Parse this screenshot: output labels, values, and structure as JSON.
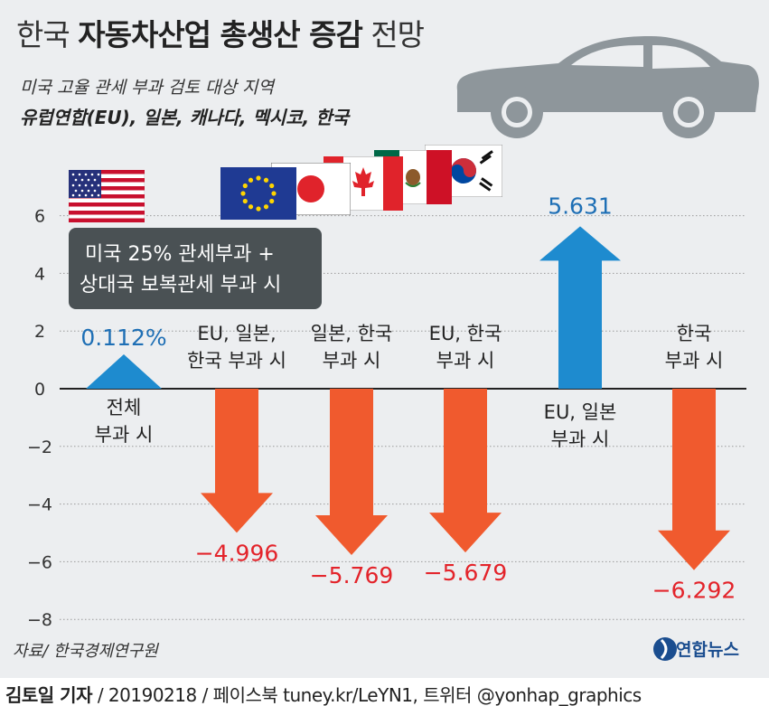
{
  "header": {
    "title_light_1": "한국",
    "title_bold": "자동차산업 총생산 증감",
    "title_light_2": "전망",
    "subtitle": "미국 고율 관세 부과 검토 대상 지역",
    "subtitle_regions": "유럽연합(EU), 일본, 캐나다, 멕시코, 한국"
  },
  "callout": {
    "line1": "미국 25% 관세부과 +",
    "line2": "상대국 보복관세 부과 시"
  },
  "chart_data": {
    "type": "bar",
    "title": "한국 자동차산업 총생산 증감 전망",
    "ylim": [
      -8,
      7
    ],
    "yticks": [
      6,
      4,
      2,
      0,
      -2,
      -4,
      -6,
      -8
    ],
    "ytick_labels": [
      "6",
      "4",
      "2",
      "0",
      "−2",
      "−4",
      "−6",
      "−8"
    ],
    "categories": [
      [
        "전체",
        "부과 시"
      ],
      [
        "EU, 일본,",
        "한국 부과 시"
      ],
      [
        "일본, 한국",
        "부과 시"
      ],
      [
        "EU, 한국",
        "부과 시"
      ],
      [
        "EU, 일본",
        "부과 시"
      ],
      [
        "한국",
        "부과 시"
      ]
    ],
    "values": [
      0.112,
      -4.996,
      -5.769,
      -5.679,
      5.631,
      -6.292
    ],
    "value_labels": [
      "0.112%",
      "−4.996",
      "−5.769",
      "−5.679",
      "5.631",
      "−6.292"
    ],
    "colors": {
      "positive": "#1e8bcf",
      "negative": "#f05a2e",
      "negative_label": "#e3232a",
      "positive_label": "#1e6fb5"
    }
  },
  "source": "자료/ 한국경제연구원",
  "logo": {
    "text": "연합뉴스"
  },
  "footer": {
    "author": "김토일 기자",
    "rest": " / 20190218 / 페이스북 tuney.kr/LeYN1, 트위터 @yonhap_graphics"
  },
  "flags": [
    "usa-flag",
    "eu-flag",
    "japan-flag",
    "canada-flag",
    "mexico-flag",
    "korea-flag"
  ]
}
